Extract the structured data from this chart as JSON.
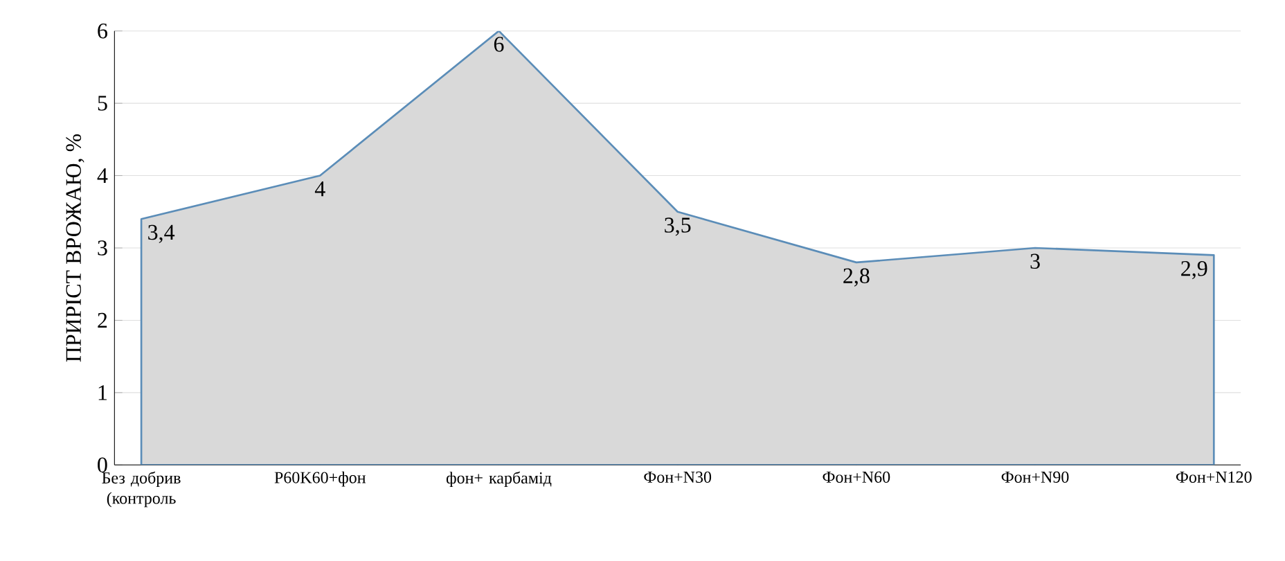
{
  "chart_data": {
    "type": "area",
    "ylabel": "ПРИРІСТ ВРОЖАЮ, %",
    "categories": [
      "Без добрив (контроль",
      "P60K60+фон",
      "фон+ карбамід",
      "Фон+N30",
      "Фон+N60",
      "Фон+N90",
      "Фон+N120"
    ],
    "values": [
      3.4,
      4,
      6,
      3.5,
      2.8,
      3,
      2.9
    ],
    "value_labels": [
      "3,4",
      "4",
      "6",
      "3,5",
      "2,8",
      "3",
      "2,9"
    ],
    "color": "#d9d9d9",
    "ylim": [
      0,
      6
    ],
    "yticks": [
      0,
      1,
      2,
      3,
      4,
      5,
      6
    ],
    "grid": "y"
  }
}
